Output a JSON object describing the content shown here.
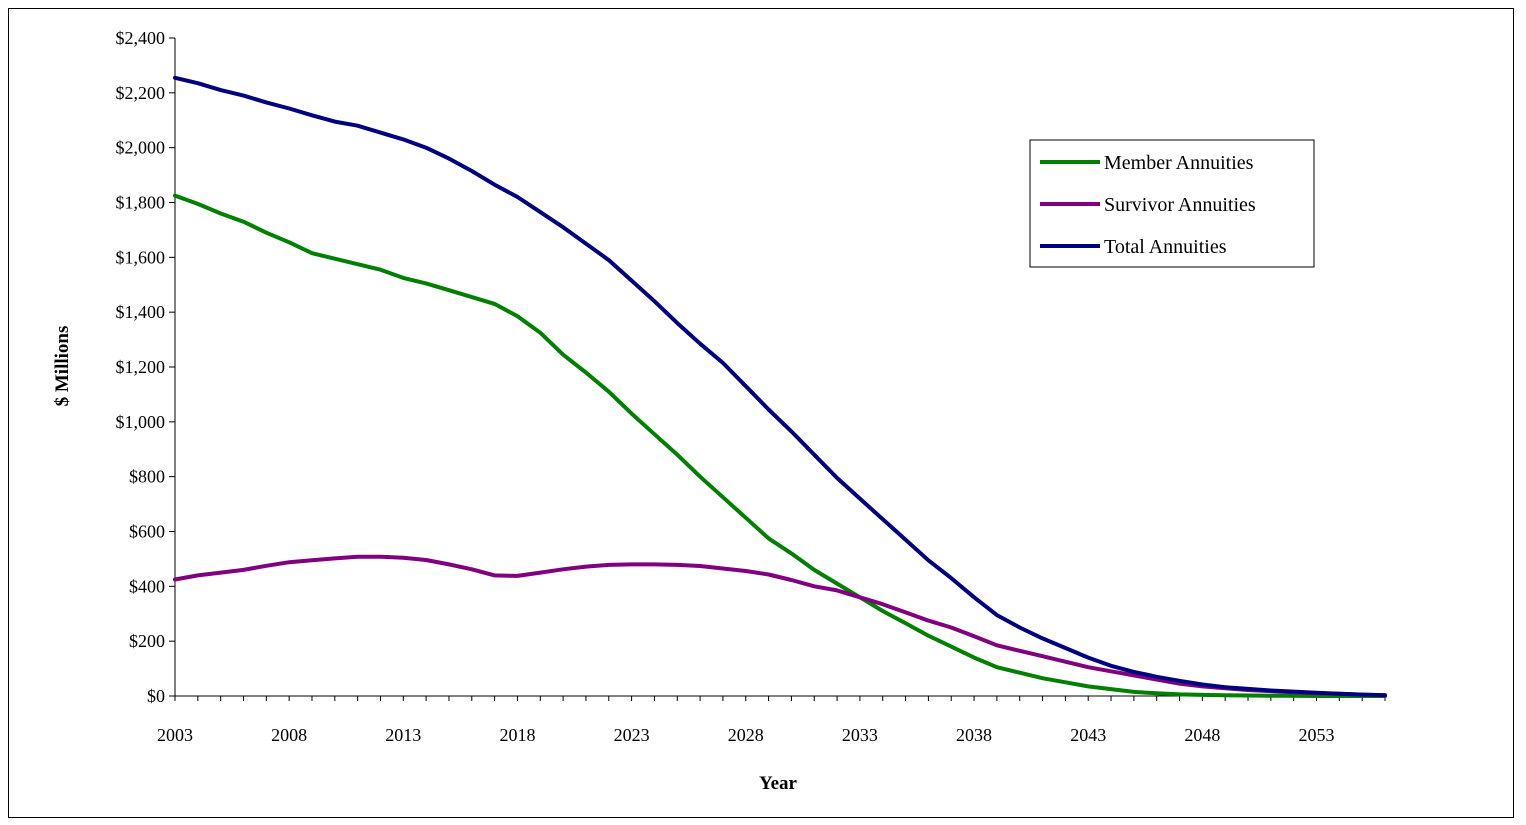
{
  "chart_data": {
    "type": "line",
    "title": "",
    "xlabel": "Year",
    "ylabel": "$ Millions",
    "xlim": [
      2003,
      2056
    ],
    "ylim": [
      0,
      2400
    ],
    "x_ticks": [
      2003,
      2008,
      2013,
      2018,
      2023,
      2028,
      2033,
      2038,
      2043,
      2048,
      2053
    ],
    "y_ticks": [
      0,
      200,
      400,
      600,
      800,
      1000,
      1200,
      1400,
      1600,
      1800,
      2000,
      2200,
      2400
    ],
    "y_tick_labels": [
      "$0",
      "$200",
      "$400",
      "$600",
      "$800",
      "$1,000",
      "$1,200",
      "$1,400",
      "$1,600",
      "$1,800",
      "$2,000",
      "$2,200",
      "$2,400"
    ],
    "grid": false,
    "legend_position": "top-right",
    "x": [
      2003,
      2004,
      2005,
      2006,
      2007,
      2008,
      2009,
      2010,
      2011,
      2012,
      2013,
      2014,
      2015,
      2016,
      2017,
      2018,
      2019,
      2020,
      2021,
      2022,
      2023,
      2024,
      2025,
      2026,
      2027,
      2028,
      2029,
      2030,
      2031,
      2032,
      2033,
      2034,
      2035,
      2036,
      2037,
      2038,
      2039,
      2040,
      2041,
      2042,
      2043,
      2044,
      2045,
      2046,
      2047,
      2048,
      2049,
      2050,
      2051,
      2052,
      2053,
      2054,
      2055,
      2056
    ],
    "series": [
      {
        "name": "Member Annuities",
        "color": "#008000",
        "values": [
          1825,
          1795,
          1760,
          1730,
          1690,
          1655,
          1615,
          1595,
          1575,
          1555,
          1525,
          1505,
          1480,
          1455,
          1430,
          1385,
          1325,
          1245,
          1180,
          1110,
          1030,
          955,
          880,
          800,
          725,
          650,
          575,
          520,
          460,
          410,
          360,
          310,
          265,
          220,
          180,
          140,
          105,
          85,
          65,
          50,
          35,
          25,
          15,
          10,
          6,
          4,
          3,
          2,
          1,
          1,
          0,
          0,
          0,
          0
        ]
      },
      {
        "name": "Survivor Annuities",
        "color": "#800080",
        "values": [
          425,
          440,
          450,
          460,
          475,
          488,
          495,
          502,
          508,
          508,
          504,
          496,
          480,
          462,
          440,
          438,
          450,
          462,
          472,
          478,
          480,
          480,
          478,
          474,
          465,
          456,
          443,
          423,
          400,
          385,
          360,
          335,
          305,
          275,
          250,
          218,
          185,
          165,
          145,
          125,
          105,
          90,
          75,
          60,
          45,
          35,
          28,
          22,
          18,
          14,
          10,
          8,
          5,
          3
        ]
      },
      {
        "name": "Total Annuities",
        "color": "#000080",
        "values": [
          2255,
          2235,
          2210,
          2190,
          2165,
          2143,
          2118,
          2095,
          2080,
          2055,
          2030,
          2000,
          1960,
          1915,
          1865,
          1820,
          1765,
          1710,
          1650,
          1590,
          1515,
          1440,
          1360,
          1285,
          1215,
          1130,
          1045,
          965,
          880,
          795,
          720,
          645,
          570,
          495,
          430,
          360,
          295,
          250,
          210,
          175,
          140,
          110,
          88,
          70,
          55,
          42,
          32,
          26,
          20,
          16,
          12,
          8,
          5,
          3
        ]
      }
    ]
  }
}
